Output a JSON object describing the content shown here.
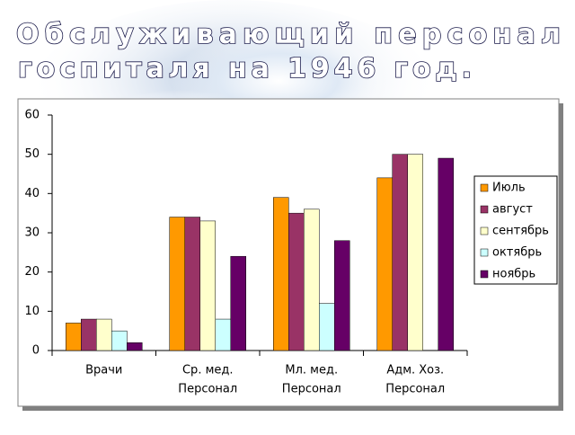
{
  "chart_data": {
    "type": "bar",
    "title": [
      "Обслуживающий персонал",
      "госпиталя на 1946 год."
    ],
    "categories": [
      [
        "Врачи"
      ],
      [
        "Ср. мед.",
        "Персонал"
      ],
      [
        "Мл. мед.",
        "Персонал"
      ],
      [
        "Адм. Хоз.",
        "Персонал"
      ]
    ],
    "series": [
      {
        "name": "Июль",
        "color": "#ff9900",
        "values": [
          7,
          34,
          39,
          44
        ]
      },
      {
        "name": "август",
        "color": "#993366",
        "values": [
          8,
          34,
          35,
          50
        ]
      },
      {
        "name": "сентябрь",
        "color": "#ffffcc",
        "values": [
          8,
          33,
          36,
          50
        ]
      },
      {
        "name": "октябрь",
        "color": "#ccffff",
        "values": [
          5,
          8,
          12,
          null
        ]
      },
      {
        "name": "ноябрь",
        "color": "#660066",
        "values": [
          2,
          24,
          28,
          49
        ]
      }
    ],
    "ylim": [
      0,
      60
    ],
    "yticks": [
      0,
      10,
      20,
      30,
      40,
      50,
      60
    ],
    "grid": false,
    "legend": "right"
  }
}
